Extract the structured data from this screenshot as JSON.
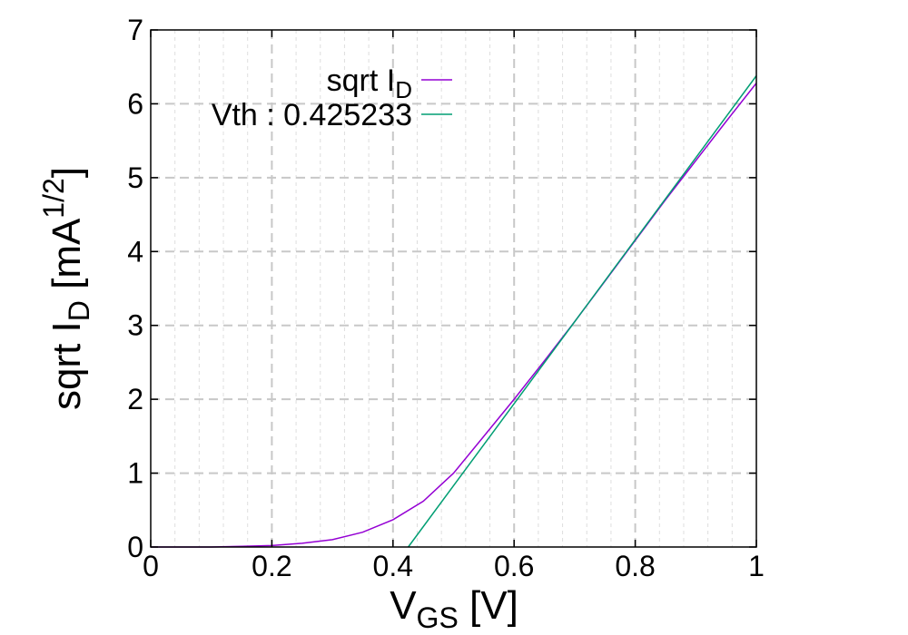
{
  "chart_data": {
    "type": "line",
    "xlabel": {
      "main": "V",
      "sub": "GS",
      "rest": " [V]"
    },
    "ylabel": {
      "main": "sqrt I",
      "sub": "D",
      "rest": " [mA",
      "sup": "1/2",
      "end": "]"
    },
    "xlim": [
      0,
      1
    ],
    "ylim": [
      0,
      7
    ],
    "x_ticks": [
      0,
      0.2,
      0.4,
      0.6,
      0.8,
      1
    ],
    "x_tick_labels": [
      "0",
      "0.2",
      "0.4",
      "0.6",
      "0.8",
      "1"
    ],
    "y_ticks": [
      0,
      1,
      2,
      3,
      4,
      5,
      6,
      7
    ],
    "y_tick_labels": [
      "0",
      "1",
      "2",
      "3",
      "4",
      "5",
      "6",
      "7"
    ],
    "grid": true,
    "legend_position": "top-right",
    "series": [
      {
        "name": {
          "main": "sqrt I",
          "sub": "D"
        },
        "color": "#9400d3",
        "points": [
          [
            0.0,
            0.0
          ],
          [
            0.05,
            0.0
          ],
          [
            0.1,
            0.0
          ],
          [
            0.15,
            0.01
          ],
          [
            0.2,
            0.02
          ],
          [
            0.25,
            0.05
          ],
          [
            0.3,
            0.1
          ],
          [
            0.35,
            0.2
          ],
          [
            0.4,
            0.37
          ],
          [
            0.45,
            0.62
          ],
          [
            0.5,
            1.0
          ],
          [
            0.55,
            1.5
          ],
          [
            0.6,
            2.0
          ],
          [
            0.65,
            2.52
          ],
          [
            0.7,
            3.05
          ],
          [
            0.75,
            3.6
          ],
          [
            0.8,
            4.15
          ],
          [
            0.85,
            4.7
          ],
          [
            0.9,
            5.23
          ],
          [
            0.95,
            5.76
          ],
          [
            1.0,
            6.28
          ]
        ]
      },
      {
        "name": {
          "main": "Vth : 0.425233"
        },
        "color": "#009e73",
        "points": [
          [
            0.425233,
            0.0
          ],
          [
            1.0,
            6.38
          ]
        ]
      }
    ]
  }
}
